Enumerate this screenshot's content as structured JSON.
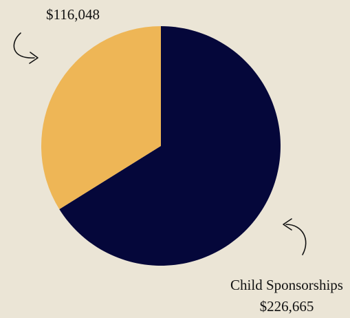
{
  "chart_data": {
    "type": "pie",
    "slices": [
      {
        "label": "Child Sponsorships",
        "value": 226665,
        "value_label": "$226,665",
        "color": "#05073a"
      },
      {
        "label": "",
        "value": 116048,
        "value_label": "$116,048",
        "color": "#eeb656"
      }
    ],
    "legend": "none",
    "annotations": "callout labels with hand-drawn arrows"
  },
  "colors": {
    "background": "#ebe5d6",
    "text": "#111111"
  }
}
